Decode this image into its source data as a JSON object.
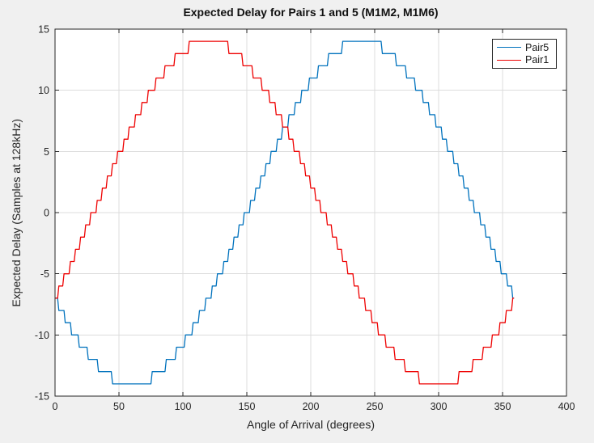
{
  "chart_data": {
    "type": "line",
    "subtype": "quantized-stairstep",
    "title": "Expected Delay for Pairs 1 and 5 (M1M2, M1M6)",
    "xlabel": "Angle of Arrival (degrees)",
    "ylabel": "Expected Delay (Samples at 128kHz)",
    "xlim": [
      0,
      400
    ],
    "ylim": [
      -15,
      15
    ],
    "x_ticks": [
      0,
      50,
      100,
      150,
      200,
      250,
      300,
      350,
      400
    ],
    "y_ticks": [
      -15,
      -10,
      -5,
      0,
      5,
      10,
      15
    ],
    "grid": true,
    "legend_position": "northeast",
    "colors": {
      "figure_background": "#f0f0f0",
      "plot_background": "#ffffff",
      "axis": "#262626",
      "tick_label": "#262626",
      "grid": "#dcdcdc",
      "title": "#111111"
    },
    "series": [
      {
        "name": "Pair5",
        "color": "#0072BD",
        "steps_format": "[delay_samples, start_degree, end_degree]",
        "steps": [
          [
            -7,
            0,
            2
          ],
          [
            -8,
            3,
            7
          ],
          [
            -9,
            8,
            12
          ],
          [
            -10,
            13,
            18
          ],
          [
            -11,
            19,
            25
          ],
          [
            -12,
            26,
            33
          ],
          [
            -13,
            34,
            44
          ],
          [
            -14,
            45,
            75
          ],
          [
            -13,
            76,
            86
          ],
          [
            -12,
            87,
            94
          ],
          [
            -11,
            95,
            101
          ],
          [
            -10,
            102,
            107
          ],
          [
            -9,
            108,
            112
          ],
          [
            -8,
            113,
            117
          ],
          [
            -7,
            118,
            122
          ],
          [
            -6,
            123,
            126
          ],
          [
            -5,
            127,
            131
          ],
          [
            -4,
            132,
            135
          ],
          [
            -3,
            136,
            139
          ],
          [
            -2,
            140,
            143
          ],
          [
            -1,
            144,
            147
          ],
          [
            0,
            148,
            152
          ],
          [
            1,
            153,
            156
          ],
          [
            2,
            157,
            160
          ],
          [
            3,
            161,
            164
          ],
          [
            4,
            165,
            168
          ],
          [
            5,
            169,
            173
          ],
          [
            6,
            174,
            177
          ],
          [
            7,
            178,
            182
          ],
          [
            8,
            183,
            187
          ],
          [
            9,
            188,
            192
          ],
          [
            10,
            193,
            198
          ],
          [
            11,
            199,
            205
          ],
          [
            12,
            206,
            213
          ],
          [
            13,
            214,
            224
          ],
          [
            14,
            225,
            255
          ],
          [
            13,
            256,
            266
          ],
          [
            12,
            267,
            274
          ],
          [
            11,
            275,
            281
          ],
          [
            10,
            282,
            287
          ],
          [
            9,
            288,
            292
          ],
          [
            8,
            293,
            297
          ],
          [
            7,
            298,
            302
          ],
          [
            6,
            303,
            306
          ],
          [
            5,
            307,
            311
          ],
          [
            4,
            312,
            315
          ],
          [
            3,
            316,
            319
          ],
          [
            2,
            320,
            323
          ],
          [
            1,
            324,
            327
          ],
          [
            0,
            328,
            332
          ],
          [
            -1,
            333,
            336
          ],
          [
            -2,
            337,
            340
          ],
          [
            -3,
            341,
            344
          ],
          [
            -4,
            345,
            348
          ],
          [
            -5,
            349,
            353
          ],
          [
            -6,
            354,
            357
          ],
          [
            -7,
            358,
            359
          ]
        ]
      },
      {
        "name": "Pair1",
        "color": "#EE0000",
        "steps_format": "[delay_samples, start_degree, end_degree]",
        "steps": [
          [
            -7,
            0,
            2
          ],
          [
            -6,
            3,
            6
          ],
          [
            -5,
            7,
            11
          ],
          [
            -4,
            12,
            15
          ],
          [
            -3,
            16,
            19
          ],
          [
            -2,
            20,
            23
          ],
          [
            -1,
            24,
            27
          ],
          [
            0,
            28,
            32
          ],
          [
            1,
            33,
            36
          ],
          [
            2,
            37,
            40
          ],
          [
            3,
            41,
            44
          ],
          [
            4,
            45,
            48
          ],
          [
            5,
            49,
            53
          ],
          [
            6,
            54,
            57
          ],
          [
            7,
            58,
            62
          ],
          [
            8,
            63,
            67
          ],
          [
            9,
            68,
            72
          ],
          [
            10,
            73,
            78
          ],
          [
            11,
            79,
            85
          ],
          [
            12,
            86,
            93
          ],
          [
            13,
            94,
            104
          ],
          [
            14,
            105,
            135
          ],
          [
            13,
            136,
            146
          ],
          [
            12,
            147,
            154
          ],
          [
            11,
            155,
            161
          ],
          [
            10,
            162,
            167
          ],
          [
            9,
            168,
            172
          ],
          [
            8,
            173,
            177
          ],
          [
            7,
            178,
            182
          ],
          [
            6,
            183,
            186
          ],
          [
            5,
            187,
            191
          ],
          [
            4,
            192,
            195
          ],
          [
            3,
            196,
            199
          ],
          [
            2,
            200,
            203
          ],
          [
            1,
            204,
            207
          ],
          [
            0,
            208,
            212
          ],
          [
            -1,
            213,
            216
          ],
          [
            -2,
            217,
            220
          ],
          [
            -3,
            221,
            224
          ],
          [
            -4,
            225,
            228
          ],
          [
            -5,
            229,
            233
          ],
          [
            -6,
            234,
            237
          ],
          [
            -7,
            238,
            242
          ],
          [
            -8,
            243,
            247
          ],
          [
            -9,
            248,
            252
          ],
          [
            -10,
            253,
            258
          ],
          [
            -11,
            259,
            265
          ],
          [
            -12,
            266,
            273
          ],
          [
            -13,
            274,
            284
          ],
          [
            -14,
            285,
            315
          ],
          [
            -13,
            316,
            326
          ],
          [
            -12,
            327,
            334
          ],
          [
            -11,
            335,
            341
          ],
          [
            -10,
            342,
            347
          ],
          [
            -9,
            348,
            352
          ],
          [
            -8,
            353,
            357
          ],
          [
            -7,
            358,
            359
          ]
        ]
      }
    ],
    "legend_entries": [
      "Pair5",
      "Pair1"
    ]
  }
}
